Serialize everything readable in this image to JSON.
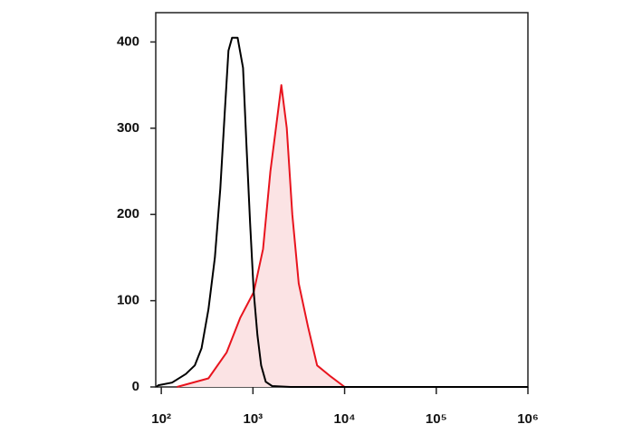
{
  "chart_data": {
    "type": "line",
    "xscale": "log",
    "xlim": [
      87,
      1000000
    ],
    "ylim": [
      0,
      434
    ],
    "xticks": [
      {
        "value": 100,
        "label": "10²"
      },
      {
        "value": 1000,
        "label": "10³"
      },
      {
        "value": 10000,
        "label": "10⁴"
      },
      {
        "value": 100000,
        "label": "10⁵"
      },
      {
        "value": 1000000,
        "label": "10⁶"
      }
    ],
    "yticks": [
      0,
      100,
      200,
      300,
      400
    ],
    "series": [
      {
        "color": "#000000",
        "x": [
          88,
          93,
          131,
          185,
          232,
          275,
          327,
          384,
          440,
          493,
          540,
          592,
          680,
          780,
          850,
          930,
          1020,
          1120,
          1230,
          1380,
          1620,
          2570,
          1000000
        ],
        "values": [
          0,
          2,
          5,
          15,
          25,
          45,
          90,
          150,
          230,
          320,
          390,
          405,
          405,
          370,
          280,
          190,
          110,
          60,
          25,
          6,
          1,
          0,
          0
        ]
      },
      {
        "color": "#e8141e",
        "fill": "#fbe3e4",
        "x": [
          148,
          327,
          516,
          725,
          1020,
          1290,
          1550,
          1780,
          2040,
          2340,
          2690,
          3160,
          3980,
          5010,
          7080,
          10000
        ],
        "values": [
          0,
          10,
          40,
          80,
          110,
          160,
          250,
          300,
          350,
          300,
          200,
          120,
          70,
          25,
          12,
          0
        ]
      }
    ]
  }
}
